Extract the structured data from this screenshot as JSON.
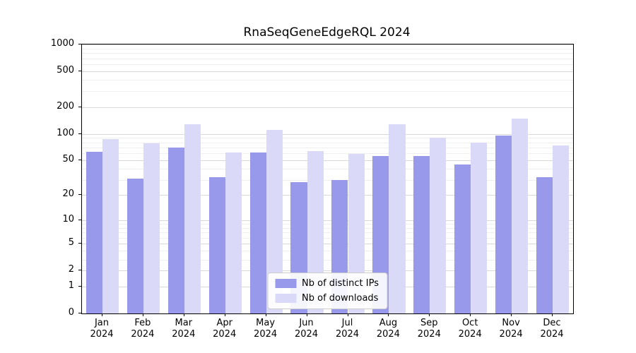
{
  "title": "RnaSeqGeneEdgeRQL 2024",
  "legend": {
    "items": [
      {
        "label": "Nb of distinct IPs",
        "color": "#9999ec"
      },
      {
        "label": "Nb of downloads",
        "color": "#dadaf8"
      }
    ],
    "position": "lower center"
  },
  "chart_data": {
    "type": "bar",
    "title": "RnaSeqGeneEdgeRQL 2024",
    "categories": [
      "Jan",
      "Feb",
      "Mar",
      "Apr",
      "May",
      "Jun",
      "Jul",
      "Aug",
      "Sep",
      "Oct",
      "Nov",
      "Dec"
    ],
    "year_label": "2024",
    "series": [
      {
        "name": "Nb of distinct IPs",
        "color": "#9999ec",
        "values": [
          63,
          31,
          70,
          32,
          62,
          28,
          30,
          56,
          56,
          45,
          96,
          32
        ]
      },
      {
        "name": "Nb of downloads",
        "color": "#dadaf8",
        "values": [
          88,
          78,
          127,
          61,
          110,
          64,
          59,
          128,
          90,
          80,
          147,
          74
        ]
      }
    ],
    "xlabel": "",
    "ylabel": "",
    "yscale": "log1p",
    "ylim": [
      0,
      1000
    ],
    "yticks": [
      0,
      1,
      2,
      5,
      10,
      20,
      50,
      100,
      200,
      500,
      1000
    ],
    "minor_gridlines": [
      3,
      4,
      6,
      7,
      8,
      9,
      30,
      40,
      60,
      70,
      80,
      90,
      300,
      400,
      600,
      700,
      800,
      900
    ],
    "grid": true,
    "legend_position": "lower center"
  }
}
